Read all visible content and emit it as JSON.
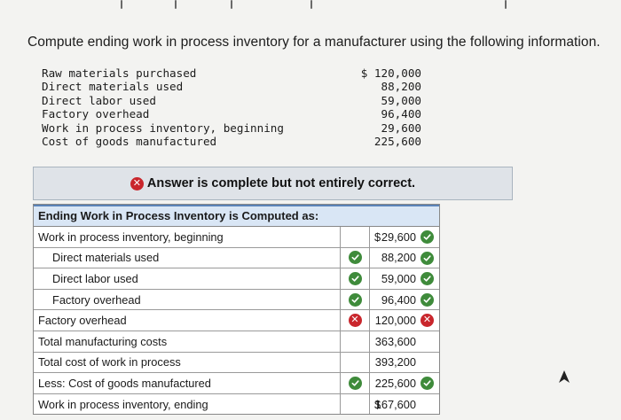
{
  "question": "Compute ending work in process inventory for a manufacturer using the following information.",
  "given": [
    {
      "label": "Raw materials purchased",
      "value": "$ 120,000"
    },
    {
      "label": "Direct materials used",
      "value": "88,200"
    },
    {
      "label": "Direct labor used",
      "value": "59,000"
    },
    {
      "label": "Factory overhead",
      "value": "96,400"
    },
    {
      "label": "Work in process inventory, beginning",
      "value": "29,600"
    },
    {
      "label": "Cost of goods manufactured",
      "value": "225,600"
    }
  ],
  "banner": {
    "text": "Answer is complete but not entirely correct.",
    "icon": "x-circle-icon",
    "color": "#c9262c"
  },
  "table": {
    "header": "Ending Work in Process Inventory is Computed as:",
    "rows": [
      {
        "label": "Work in process inventory, beginning",
        "indent": false,
        "label_mark": "",
        "dollar": "$",
        "amount": "29,600",
        "amount_mark": "check"
      },
      {
        "label": "Direct materials used",
        "indent": true,
        "label_mark": "check",
        "dollar": "",
        "amount": "88,200",
        "amount_mark": "check"
      },
      {
        "label": "Direct labor used",
        "indent": true,
        "label_mark": "check",
        "dollar": "",
        "amount": "59,000",
        "amount_mark": "check"
      },
      {
        "label": "Factory overhead",
        "indent": true,
        "label_mark": "check",
        "dollar": "",
        "amount": "96,400",
        "amount_mark": "check"
      },
      {
        "label": "Factory overhead",
        "indent": false,
        "label_mark": "x",
        "dollar": "",
        "amount": "120,000",
        "amount_mark": "x"
      },
      {
        "label": "Total manufacturing costs",
        "indent": false,
        "label_mark": "",
        "dollar": "",
        "amount": "363,600",
        "amount_mark": ""
      },
      {
        "label": "Total cost of work in process",
        "indent": false,
        "label_mark": "",
        "dollar": "",
        "amount": "393,200",
        "amount_mark": ""
      },
      {
        "label": "Less: Cost of goods manufactured",
        "indent": false,
        "label_mark": "check",
        "dollar": "",
        "amount": "225,600",
        "amount_mark": "check"
      },
      {
        "label": "Work in process inventory, ending",
        "indent": false,
        "label_mark": "",
        "dollar": "$",
        "amount": "167,600",
        "amount_mark": ""
      }
    ]
  },
  "colors": {
    "correct": "#3f8b3b",
    "incorrect": "#c9262c",
    "header_bg": "#d9e6f5",
    "banner_bg": "#dfe3e8"
  }
}
